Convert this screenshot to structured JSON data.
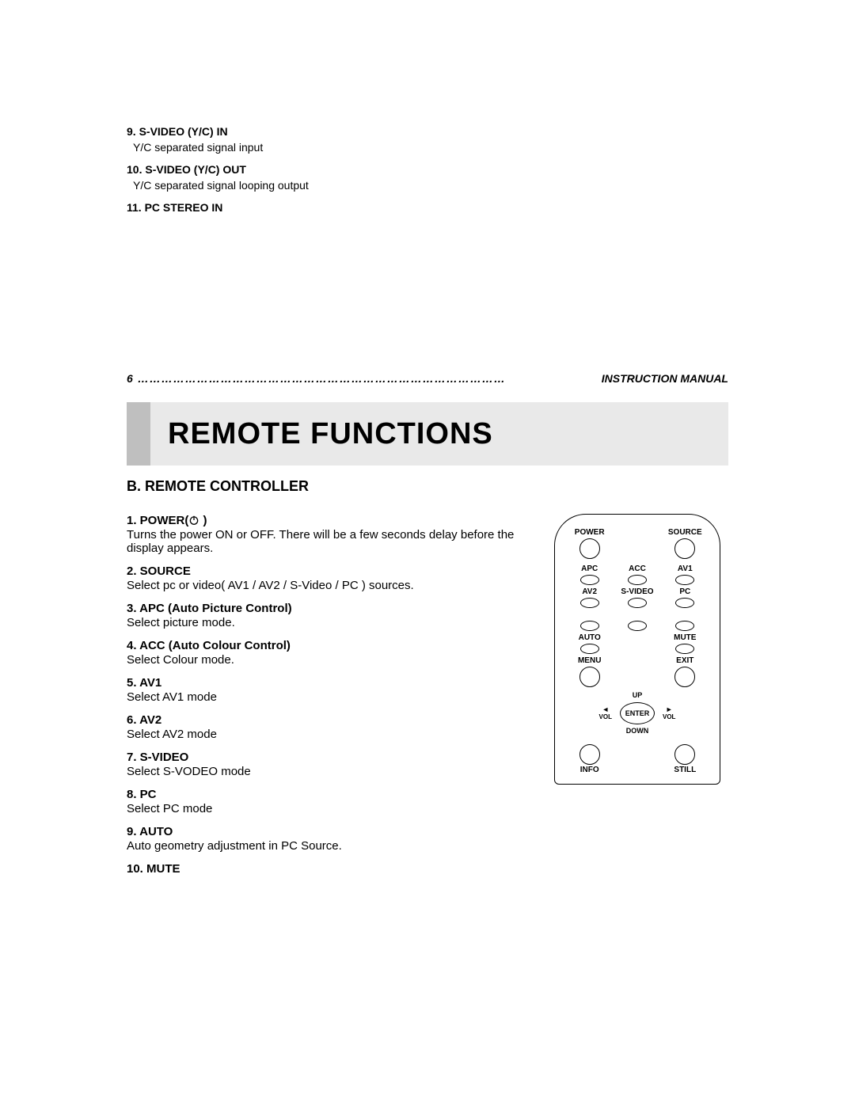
{
  "top_items": [
    {
      "title": "9. S-VIDEO (Y/C) IN",
      "desc": "Y/C separated signal input"
    },
    {
      "title": "10. S-VIDEO (Y/C) OUT",
      "desc": "Y/C separated signal looping output"
    },
    {
      "title": "11. PC STEREO IN",
      "desc": ""
    }
  ],
  "footer": {
    "page_number": "6",
    "label": "INSTRUCTION MANUAL"
  },
  "banner_title": "REMOTE FUNCTIONS",
  "section_heading": "B. REMOTE CONTROLLER",
  "functions": [
    {
      "title": "1. POWER(",
      "title_suffix": " )",
      "icon": "power",
      "desc": "Turns the power ON or OFF. There will be a few seconds delay before the display appears."
    },
    {
      "title": "2. SOURCE",
      "desc": "Select pc or video( AV1 / AV2 / S-Video / PC ) sources."
    },
    {
      "title": "3. APC (Auto Picture Control)",
      "desc": "Select picture mode."
    },
    {
      "title": "4. ACC (Auto Colour Control)",
      "desc": "Select Colour mode."
    },
    {
      "title": "5. AV1",
      "desc": "Select AV1 mode"
    },
    {
      "title": "6. AV2",
      "desc": "Select AV2 mode"
    },
    {
      "title": "7. S-VIDEO",
      "desc": "Select S-VODEO mode"
    },
    {
      "title": "8. PC",
      "desc": "Select PC mode"
    },
    {
      "title": "9. AUTO",
      "desc": "Auto geometry adjustment in PC Source."
    },
    {
      "title": "10. MUTE",
      "desc": ""
    }
  ],
  "remote_labels": {
    "power": "POWER",
    "source": "SOURCE",
    "apc": "APC",
    "acc": "ACC",
    "av1": "AV1",
    "av2": "AV2",
    "svideo": "S-VIDEO",
    "pc": "PC",
    "auto": "AUTO",
    "mute": "MUTE",
    "menu": "MENU",
    "exit": "EXIT",
    "up": "UP",
    "down": "DOWN",
    "enter": "ENTER",
    "vol": "VOL",
    "info": "INFO",
    "still": "STILL"
  },
  "colors": {
    "banner_bg": "#e9e9e9",
    "stripe": "#bfbfbf",
    "text": "#000000"
  }
}
